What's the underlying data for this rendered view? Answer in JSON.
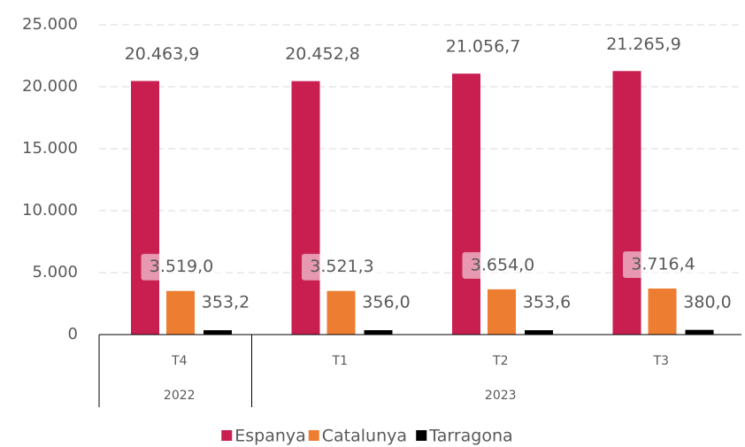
{
  "chart_data": {
    "type": "bar",
    "categories": [
      "T4",
      "T1",
      "T2",
      "T3"
    ],
    "groups": [
      {
        "name": "2022",
        "count": 1
      },
      {
        "name": "2023",
        "count": 3
      }
    ],
    "series": [
      {
        "name": "Espanya",
        "color": "#c81e50",
        "values": [
          20463.9,
          20452.8,
          21056.7,
          21265.9
        ],
        "value_labels": [
          "20.463,9",
          "20.452,8",
          "21.056,7",
          "21.265,9"
        ]
      },
      {
        "name": "Catalunya",
        "color": "#ed7d31",
        "values": [
          3519.0,
          3521.3,
          3654.0,
          3716.4
        ],
        "value_labels": [
          "3.519,0",
          "3.521,3",
          "3.654,0",
          "3.716,4"
        ]
      },
      {
        "name": "Tarragona",
        "color": "#000000",
        "values": [
          353.2,
          356.0,
          353.6,
          380.0
        ],
        "value_labels": [
          "353,2",
          "356,0",
          "353,6",
          "380,0"
        ]
      }
    ],
    "ylim": [
      0,
      25000
    ],
    "yticks": [
      0,
      {
        "value": 5000,
        "label": "5.000"
      },
      {
        "value": 10000,
        "label": "10.000"
      },
      {
        "value": 15000,
        "label": "15.000"
      },
      {
        "value": 20000,
        "label": "20.000"
      },
      {
        "value": 25000,
        "label": "25.000"
      }
    ],
    "grid": true,
    "legend": "bottom"
  }
}
